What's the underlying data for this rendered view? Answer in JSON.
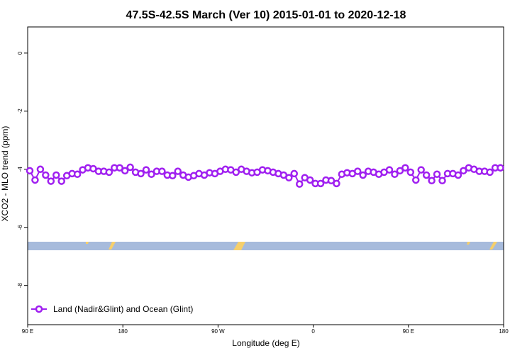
{
  "chart_data": {
    "type": "line",
    "title": "47.5S-42.5S March (Ver 10)   2015-01-01 to 2020-12-18",
    "x_label": "Longitude (deg E)",
    "y_label": "XCO2 - MLO trend (ppm)",
    "x": [
      92,
      97,
      102,
      107,
      112,
      117,
      122,
      127,
      132,
      137,
      142,
      147,
      152,
      157,
      162,
      167,
      172,
      177,
      182,
      187,
      192,
      197,
      202,
      207,
      212,
      217,
      222,
      227,
      232,
      237,
      242,
      247,
      252,
      257,
      262,
      267,
      272,
      277,
      282,
      287,
      292,
      297,
      302,
      307,
      312,
      317,
      322,
      327,
      332,
      337,
      342,
      347,
      352,
      357,
      362,
      367,
      372,
      377,
      382,
      387,
      392,
      397,
      402,
      407,
      412,
      417,
      422,
      427,
      432,
      437,
      442,
      447,
      452,
      457,
      462,
      467,
      472,
      477,
      482,
      487,
      492,
      497,
      502,
      507,
      512,
      517,
      522,
      527,
      532,
      537
    ],
    "series": [
      {
        "name": "Land (Nadir&Glint) and Ocean (Glint)",
        "color": "#a020f0",
        "values": [
          -4.05,
          -4.37,
          -4.0,
          -4.2,
          -4.41,
          -4.2,
          -4.41,
          -4.22,
          -4.15,
          -4.17,
          -4.02,
          -3.95,
          -3.98,
          -4.07,
          -4.07,
          -4.1,
          -3.95,
          -3.95,
          -4.05,
          -3.93,
          -4.1,
          -4.15,
          -4.02,
          -4.17,
          -4.07,
          -4.07,
          -4.2,
          -4.22,
          -4.07,
          -4.2,
          -4.27,
          -4.22,
          -4.15,
          -4.2,
          -4.12,
          -4.15,
          -4.07,
          -4.0,
          -4.02,
          -4.1,
          -4.0,
          -4.07,
          -4.12,
          -4.1,
          -4.02,
          -4.05,
          -4.1,
          -4.15,
          -4.2,
          -4.29,
          -4.15,
          -4.51,
          -4.29,
          -4.37,
          -4.49,
          -4.49,
          -4.37,
          -4.39,
          -4.49,
          -4.17,
          -4.12,
          -4.15,
          -4.07,
          -4.2,
          -4.07,
          -4.1,
          -4.17,
          -4.1,
          -4.02,
          -4.17,
          -4.05,
          -3.95,
          -4.1,
          -4.37,
          -4.02,
          -4.2,
          -4.39,
          -4.17,
          -4.39,
          -4.15,
          -4.15,
          -4.2,
          -4.05,
          -3.95,
          -4.0,
          -4.07,
          -4.07,
          -4.1,
          -3.95,
          -3.95
        ]
      }
    ],
    "xlim": [
      90,
      540
    ],
    "xticks": [
      {
        "value": 90,
        "label": "90 E"
      },
      {
        "value": 180,
        "label": "180"
      },
      {
        "value": 270,
        "label": "90 W"
      },
      {
        "value": 360,
        "label": "0"
      },
      {
        "value": 450,
        "label": "90 E"
      },
      {
        "value": 540,
        "label": "180"
      }
    ],
    "ylim": [
      -9.35,
      0.9
    ],
    "yticks": [
      0,
      -2,
      -4,
      -6,
      -8
    ],
    "legend": "bottom-left"
  }
}
